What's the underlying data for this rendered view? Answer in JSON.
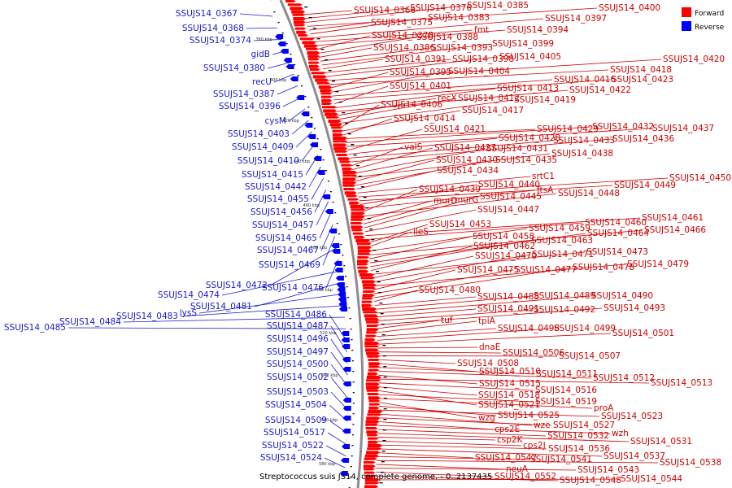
{
  "caption": "Streptococcus suis JS14, complete genome. - 0..2137435",
  "legend": {
    "forward_label": "Forward",
    "reverse_label": "Reverse",
    "forward_color": "#ff0000",
    "reverse_color": "#0000ff"
  },
  "colors": {
    "forward_text": "#cc0000",
    "reverse_text": "#1a1acc",
    "backbone": "#8c8c8c"
  },
  "kbp_ticks": [
    "380 kbp",
    "400 kbp",
    "420 kbp",
    "440 kbp",
    "460 kbp",
    "480 kbp",
    "500 kbp",
    "520 kbp",
    "540 kbp",
    "560 kbp",
    "580 kbp"
  ],
  "reverse_labels": [
    "SSUJS14_0367",
    "SSUJS14_0368",
    "SSUJS14_0374",
    "gidB",
    "SSUJS14_0380",
    "recU",
    "SSUJS14_0387",
    "SSUJS14_0396",
    "cysM",
    "SSUJS14_0403",
    "SSUJS14_0409",
    "SSUJS14_0410",
    "SSUJS14_0415",
    "SSUJS14_0442",
    "SSUJS14_0455",
    "SSUJS14_0456",
    "SSUJS14_0457",
    "SSUJS14_0465",
    "SSUJS14_0467",
    "SSUJS14_0469",
    "SSUJS14_0472",
    "SSUJS14_0476",
    "SSUJS14_0474",
    "SSUJS14_0481",
    "lysS",
    "SSUJS14_0483",
    "SSUJS14_0484",
    "SSUJS14_0485",
    "SSUJS14_0486",
    "SSUJS14_0487",
    "SSUJS14_0496",
    "SSUJS14_0497",
    "SSUJS14_0500",
    "SSUJS14_0502",
    "SSUJS14_0503",
    "SSUJS14_0504",
    "SSUJS14_0509",
    "SSUJS14_0517",
    "SSUJS14_0522",
    "SSUJS14_0524"
  ],
  "forward_labels": [
    "SSUJS14_0366",
    "SSUJS14_0376",
    "SSUJS14_0385",
    "SSUJS14_0400",
    "SSUJS14_0375",
    "SSUJS14_0383",
    "SSUJS14_0397",
    "fmt",
    "SSUJS14_0394",
    "SSUJS14_0378",
    "SSUJS14_0388",
    "SSUJS14_0386",
    "SSUJS14_0393",
    "SSUJS14_0399",
    "SSUJS14_0391",
    "SSUJS14_0398",
    "SSUJS14_0405",
    "SSUJS14_0420",
    "SSUJS14_0418",
    "SSUJS14_0395",
    "SSUJS14_0404",
    "SSUJS14_0416",
    "SSUJS14_0423",
    "SSUJS14_0401",
    "SSUJS14_0413",
    "SSUJS14_0422",
    "recX",
    "SSUJS14_0412",
    "SSUJS14_0419",
    "SSUJS14_0406",
    "SSUJS14_0417",
    "SSUJS14_0414",
    "SSUJS14_0429",
    "SSUJS14_0432",
    "SSUJS14_0437",
    "SSUJS14_0421",
    "SSUJS14_0428",
    "SSUJS14_0433",
    "SSUJS14_0436",
    "valS",
    "SSUJS14_0427",
    "SSUJS14_0431",
    "SSUJS14_0438",
    "SSUJS14_0430",
    "SSUJS14_0435",
    "SSUJS14_0434",
    "srtC1",
    "SSUJS14_0450",
    "SSUJS14_0449",
    "SSUJS14_0440",
    "ftsA",
    "SSUJS14_0439",
    "SSUJS14_0448",
    "murD",
    "murG",
    "SSUJS14_0445",
    "SSUJS14_0447",
    "SSUJS14_0461",
    "SSUJS14_0460",
    "SSUJS14_0453",
    "ileS",
    "SSUJS14_0459",
    "SSUJS14_0466",
    "SSUJS14_0458",
    "SSUJS14_0464",
    "SSUJS14_0463",
    "SSUJS14_0462",
    "SSUJS14_0473",
    "SSUJS14_0470",
    "SSUJS14_0471",
    "SSUJS14_0479",
    "SSUJS14_0475",
    "SSUJS14_0477",
    "SSUJS14_0478",
    "SSUJS14_0480",
    "SSUJS14_0488",
    "SSUJS14_0489",
    "SSUJS14_0490",
    "SSUJS14_0491",
    "SSUJS14_0492",
    "SSUJS14_0493",
    "tuf",
    "tpiA",
    "SSUJS14_0498",
    "SSUJS14_0499",
    "SSUJS14_0501",
    "dnaE",
    "SSUJS14_0506",
    "SSUJS14_0507",
    "SSUJS14_0508",
    "SSUJS14_0510",
    "SSUJS14_0511",
    "SSUJS14_0512",
    "SSUJS14_0515",
    "SSUJS14_0513",
    "SSUJS14_0516",
    "SSUJS14_0518",
    "SSUJS14_0521",
    "SSUJS14_0519",
    "proA",
    "wzg",
    "SSUJS14_0525",
    "SSUJS14_0523",
    "wze",
    "SSUJS14_0527",
    "cps2E",
    "wzh",
    "SSUJS14_0532",
    "SSUJS14_0531",
    "csp2K",
    "cps2J",
    "SSUJS14_0536",
    "SSUJS14_0537",
    "SSUJS14_0542",
    "SSUJS14_0541",
    "SSUJS14_0538",
    "neuA",
    "SSUJS14_0543",
    "SSUJS14_0552",
    "SSUJS14_0548",
    "SSUJS14_0544"
  ]
}
